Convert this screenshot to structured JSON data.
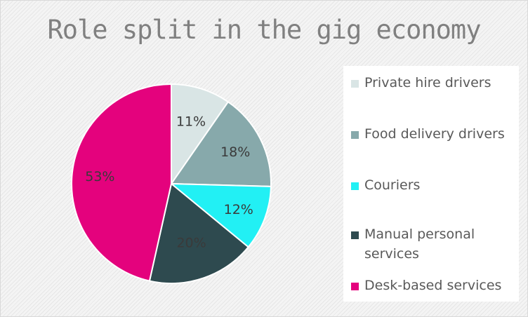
{
  "chart_data": {
    "type": "pie",
    "title": "Role split in the gig economy",
    "categories": [
      "Private hire drivers",
      "Food delivery drivers",
      "Couriers",
      "Manual personal services",
      "Desk-based services"
    ],
    "values": [
      11,
      18,
      12,
      20,
      53
    ],
    "labels": [
      "11%",
      "18%",
      "12%",
      "20%",
      "53%"
    ],
    "colors": [
      "#d9e5e5",
      "#87a9ab",
      "#22f0f4",
      "#2e4a4f",
      "#e4027d"
    ],
    "legend_position": "right"
  }
}
